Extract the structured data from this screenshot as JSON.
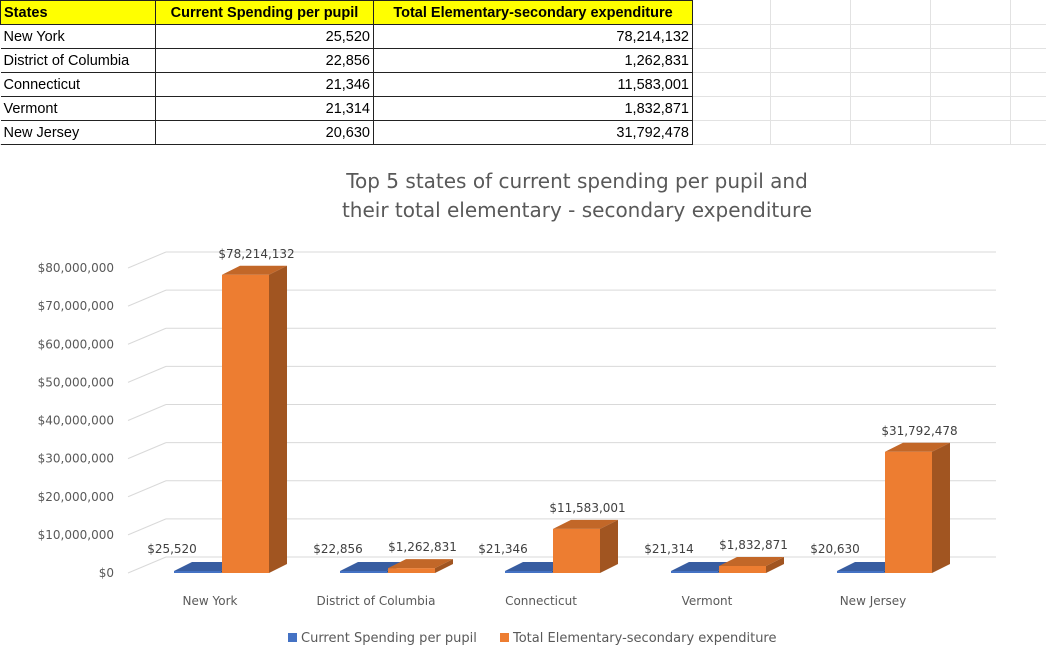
{
  "table": {
    "headers": [
      "States",
      "Current Spending per pupil",
      "Total Elementary-secondary expenditure"
    ],
    "rows": [
      [
        "New York",
        "25,520",
        "78,214,132"
      ],
      [
        "District of Columbia",
        "22,856",
        "1,262,831"
      ],
      [
        "Connecticut",
        "21,346",
        "11,583,001"
      ],
      [
        "Vermont",
        "21,314",
        "1,832,871"
      ],
      [
        "New Jersey",
        "20,630",
        "31,792,478"
      ]
    ]
  },
  "chart_data": {
    "type": "bar",
    "title": [
      "Top 5 states of current spending per pupil and",
      "their total elementary - secondary expenditure"
    ],
    "categories": [
      "New York",
      "District of Columbia",
      "Connecticut",
      "Vermont",
      "New Jersey"
    ],
    "series": [
      {
        "name": "Current Spending per pupil",
        "values": [
          25520,
          22856,
          21346,
          21314,
          20630
        ],
        "labels": [
          "$25,520",
          "$22,856",
          "$21,346",
          "$21,314",
          "$20,630"
        ],
        "color": "#4472c4"
      },
      {
        "name": "Total Elementary-secondary expenditure",
        "values": [
          78214132,
          1262831,
          11583001,
          1832871,
          31792478
        ],
        "labels": [
          "$78,214,132",
          "$1,262,831",
          "$11,583,001",
          "$1,832,871",
          "$31,792,478"
        ],
        "color": "#ed7d31"
      }
    ],
    "ylim": [
      0,
      80000000
    ],
    "yticks": [
      0,
      10000000,
      20000000,
      30000000,
      40000000,
      50000000,
      60000000,
      70000000,
      80000000
    ],
    "ytick_labels": [
      "$0",
      "$10,000,000",
      "$20,000,000",
      "$30,000,000",
      "$40,000,000",
      "$50,000,000",
      "$60,000,000",
      "$70,000,000",
      "$80,000,000"
    ],
    "grid": true,
    "legend": "bottom"
  }
}
